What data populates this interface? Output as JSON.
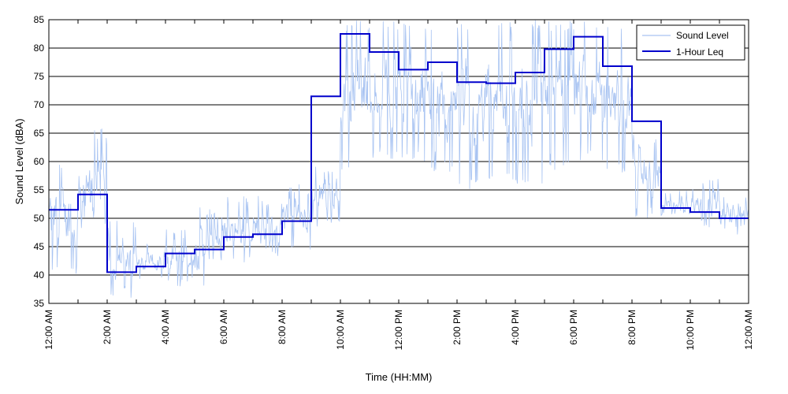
{
  "chart_data": {
    "type": "line",
    "xlabel": "Time (HH:MM)",
    "ylabel": "Sound Level (dBA)",
    "xlim": [
      0,
      24
    ],
    "ylim": [
      35,
      85
    ],
    "y_ticks": [
      35,
      40,
      45,
      50,
      55,
      60,
      65,
      70,
      75,
      80,
      85
    ],
    "x_ticks": [
      0,
      2,
      4,
      6,
      8,
      10,
      12,
      14,
      16,
      18,
      20,
      22,
      24
    ],
    "x_tick_labels": [
      "12:00 AM",
      "2:00 AM",
      "4:00 AM",
      "6:00 AM",
      "8:00 AM",
      "10:00 AM",
      "12:00 PM",
      "2:00 PM",
      "4:00 PM",
      "6:00 PM",
      "8:00 PM",
      "10:00 PM",
      "12:00 AM"
    ],
    "grid": "horizontal",
    "legend": {
      "position": "top-right",
      "entries": [
        "Sound Level",
        "1-Hour Leq"
      ]
    },
    "series": [
      {
        "name": "Sound Level",
        "color": "#a9c4f2",
        "kind": "noisy-trace",
        "hourly_ranges": [
          [
            40,
            60
          ],
          [
            42,
            66
          ],
          [
            36,
            50
          ],
          [
            38,
            46
          ],
          [
            38,
            48
          ],
          [
            37,
            52
          ],
          [
            42,
            54
          ],
          [
            43,
            54
          ],
          [
            44,
            56
          ],
          [
            48,
            60
          ],
          [
            58,
            85
          ],
          [
            60,
            85
          ],
          [
            60,
            85
          ],
          [
            58,
            85
          ],
          [
            55,
            85
          ],
          [
            56,
            85
          ],
          [
            55,
            85
          ],
          [
            58,
            85
          ],
          [
            60,
            85
          ],
          [
            58,
            85
          ],
          [
            50,
            65
          ],
          [
            49,
            55
          ],
          [
            48,
            57
          ],
          [
            47,
            54
          ]
        ]
      },
      {
        "name": "1-Hour Leq",
        "color": "#0000cc",
        "kind": "step",
        "x": [
          0,
          1,
          2,
          3,
          4,
          5,
          6,
          7,
          8,
          9,
          10,
          11,
          12,
          13,
          14,
          15,
          16,
          17,
          18,
          19,
          20,
          21,
          22,
          23
        ],
        "values": [
          51.5,
          54.2,
          40.5,
          41.5,
          43.8,
          44.5,
          46.7,
          47.2,
          49.5,
          71.5,
          82.5,
          79.3,
          76.2,
          77.5,
          74.0,
          73.8,
          75.7,
          79.8,
          82.0,
          76.8,
          67.1,
          51.8,
          51.1,
          50.0
        ]
      }
    ]
  }
}
